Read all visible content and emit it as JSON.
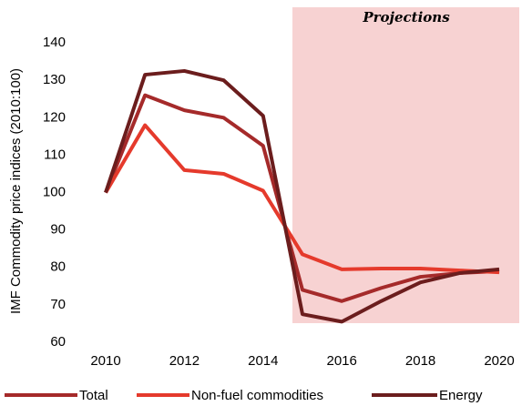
{
  "chart_data": {
    "type": "line",
    "y_label": "IMF Commodity price indices (2010:100)",
    "annotation": "Projections",
    "x": [
      2010,
      2011,
      2012,
      2013,
      2014,
      2015,
      2016,
      2017,
      2018,
      2019,
      2020
    ],
    "series": [
      {
        "name": "Total",
        "color": "#a52a2a",
        "values": [
          100,
          126,
          122,
          120,
          112.5,
          74,
          71,
          74.5,
          77.5,
          78.5,
          79
        ]
      },
      {
        "name": "Non-fuel commodities",
        "color": "#e53a2c",
        "values": [
          100,
          118,
          106,
          105,
          100.5,
          83.5,
          79.5,
          79.7,
          79.7,
          79.2,
          78.7
        ]
      },
      {
        "name": "Energy",
        "color": "#6b1d1d",
        "values": [
          100,
          131.5,
          132.5,
          130,
          120.5,
          67.5,
          65.5,
          71,
          76,
          78.5,
          79.5
        ]
      }
    ],
    "xlim": [
      2009.5,
      2020.5
    ],
    "xticks": [
      2010,
      2012,
      2014,
      2016,
      2018,
      2020
    ],
    "ylim": [
      60,
      150
    ],
    "yticks": [
      60,
      70,
      80,
      90,
      100,
      110,
      120,
      130,
      140
    ],
    "grid": false
  }
}
